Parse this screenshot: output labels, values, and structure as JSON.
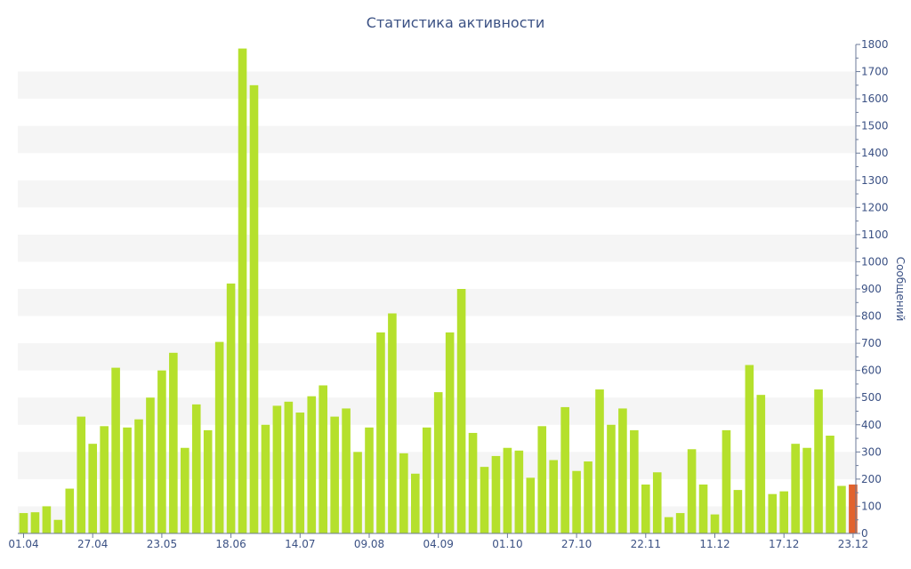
{
  "chart_data": {
    "type": "bar",
    "title": "Статистика активности",
    "ylabel": "Сообщений",
    "xlabel": "",
    "ylim": [
      0,
      1800
    ],
    "y_ticks": [
      0,
      100,
      200,
      300,
      400,
      500,
      600,
      700,
      800,
      900,
      1000,
      1100,
      1200,
      1300,
      1400,
      1500,
      1600,
      1700,
      1800
    ],
    "x_tick_labels": [
      "01.04",
      "27.04",
      "23.05",
      "18.06",
      "14.07",
      "09.08",
      "04.09",
      "01.10",
      "27.10",
      "22.11",
      "11.12",
      "17.12",
      "23.12"
    ],
    "x_tick_bar_index": [
      0,
      6,
      12,
      18,
      24,
      30,
      36,
      42,
      48,
      54,
      60,
      66,
      72
    ],
    "grid": "horizontal bands",
    "y_axis_position": "right",
    "colors": {
      "bar": "#b5e02c",
      "highlight": "#e2622c",
      "text": "#3b5184",
      "band": "#f5f5f5"
    },
    "highlight_index": 72,
    "values": [
      75,
      78,
      100,
      50,
      165,
      430,
      330,
      395,
      610,
      390,
      420,
      500,
      600,
      665,
      315,
      475,
      380,
      705,
      920,
      1785,
      1650,
      400,
      470,
      485,
      445,
      505,
      545,
      430,
      460,
      300,
      390,
      740,
      810,
      295,
      220,
      390,
      520,
      740,
      900,
      370,
      245,
      285,
      315,
      305,
      205,
      395,
      270,
      465,
      230,
      265,
      530,
      400,
      460,
      380,
      180,
      225,
      60,
      75,
      310,
      180,
      70,
      380,
      160,
      620,
      510,
      145,
      155,
      330,
      315,
      530,
      360,
      175,
      180
    ]
  }
}
